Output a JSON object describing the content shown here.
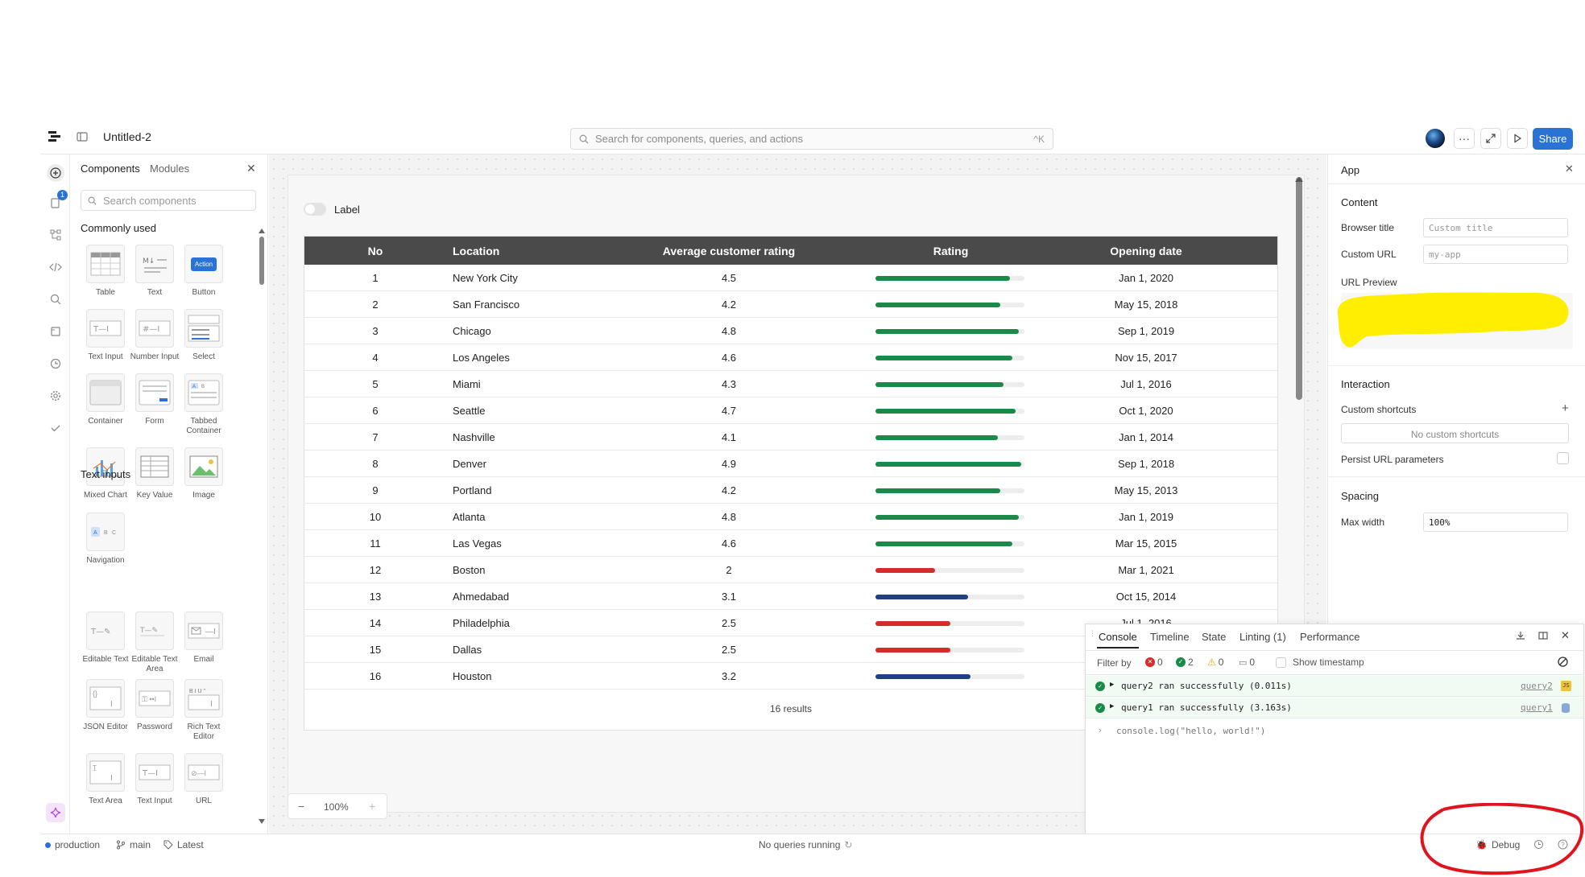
{
  "topbar": {
    "app_name": "Untitled-2",
    "search_placeholder": "Search for components, queries, and actions",
    "search_shortcut": "^K",
    "share_label": "Share"
  },
  "left_rail": {
    "notification_badge": "1"
  },
  "components_panel": {
    "tab_components": "Components",
    "tab_modules": "Modules",
    "search_placeholder": "Search components",
    "section_common": "Commonly used",
    "section_text_inputs": "Text inputs",
    "common": [
      {
        "label": "Table",
        "icon": "table-icon"
      },
      {
        "label": "Text",
        "icon": "markdown-icon"
      },
      {
        "label": "Button",
        "icon": "button-icon",
        "icon_text": "Action"
      },
      {
        "label": "Text Input",
        "icon": "text-input-icon"
      },
      {
        "label": "Number Input",
        "icon": "number-input-icon"
      },
      {
        "label": "Select",
        "icon": "select-icon"
      },
      {
        "label": "Container",
        "icon": "container-icon"
      },
      {
        "label": "Form",
        "icon": "form-icon"
      },
      {
        "label": "Tabbed Container",
        "icon": "tabbed-container-icon"
      },
      {
        "label": "Mixed Chart",
        "icon": "chart-icon"
      },
      {
        "label": "Key Value",
        "icon": "key-value-icon"
      },
      {
        "label": "Image",
        "icon": "image-icon"
      },
      {
        "label": "Navigation",
        "icon": "navigation-icon"
      }
    ],
    "text_inputs": [
      {
        "label": "Editable Text",
        "icon": "editable-text-icon"
      },
      {
        "label": "Editable Text Area",
        "icon": "editable-text-area-icon"
      },
      {
        "label": "Email",
        "icon": "email-icon"
      },
      {
        "label": "JSON Editor",
        "icon": "json-editor-icon"
      },
      {
        "label": "Password",
        "icon": "password-icon"
      },
      {
        "label": "Rich Text Editor",
        "icon": "rich-text-icon"
      },
      {
        "label": "Text Area",
        "icon": "text-area-icon"
      },
      {
        "label": "Text Input",
        "icon": "text-input-icon"
      },
      {
        "label": "URL",
        "icon": "url-icon"
      }
    ]
  },
  "canvas": {
    "toggle_label": "Label",
    "zoom": "100%",
    "table": {
      "headers": [
        "No",
        "Location",
        "Average customer rating",
        "Rating",
        "Opening date"
      ],
      "rows": [
        {
          "no": "1",
          "location": "New York City",
          "avg": "4.5",
          "rating": 0.9,
          "color": "#1a8a4a",
          "date": "Jan 1, 2020"
        },
        {
          "no": "2",
          "location": "San Francisco",
          "avg": "4.2",
          "rating": 0.84,
          "color": "#1a8a4a",
          "date": "May 15, 2018"
        },
        {
          "no": "3",
          "location": "Chicago",
          "avg": "4.8",
          "rating": 0.96,
          "color": "#1a8a4a",
          "date": "Sep 1, 2019"
        },
        {
          "no": "4",
          "location": "Los Angeles",
          "avg": "4.6",
          "rating": 0.92,
          "color": "#1a8a4a",
          "date": "Nov 15, 2017"
        },
        {
          "no": "5",
          "location": "Miami",
          "avg": "4.3",
          "rating": 0.86,
          "color": "#1a8a4a",
          "date": "Jul 1, 2016"
        },
        {
          "no": "6",
          "location": "Seattle",
          "avg": "4.7",
          "rating": 0.94,
          "color": "#1a8a4a",
          "date": "Oct 1, 2020"
        },
        {
          "no": "7",
          "location": "Nashville",
          "avg": "4.1",
          "rating": 0.82,
          "color": "#1a8a4a",
          "date": "Jan 1, 2014"
        },
        {
          "no": "8",
          "location": "Denver",
          "avg": "4.9",
          "rating": 0.98,
          "color": "#1a8a4a",
          "date": "Sep 1, 2018"
        },
        {
          "no": "9",
          "location": "Portland",
          "avg": "4.2",
          "rating": 0.84,
          "color": "#1a8a4a",
          "date": "May 15, 2013"
        },
        {
          "no": "10",
          "location": "Atlanta",
          "avg": "4.8",
          "rating": 0.96,
          "color": "#1a8a4a",
          "date": "Jan 1, 2019"
        },
        {
          "no": "11",
          "location": "Las Vegas",
          "avg": "4.6",
          "rating": 0.92,
          "color": "#1a8a4a",
          "date": "Mar 15, 2015"
        },
        {
          "no": "12",
          "location": "Boston",
          "avg": "2",
          "rating": 0.4,
          "color": "#d62b2b",
          "date": "Mar 1, 2021"
        },
        {
          "no": "13",
          "location": "Ahmedabad",
          "avg": "3.1",
          "rating": 0.62,
          "color": "#1f3f8a",
          "date": "Oct 15, 2014"
        },
        {
          "no": "14",
          "location": "Philadelphia",
          "avg": "2.5",
          "rating": 0.5,
          "color": "#d62b2b",
          "date": "Jul 1, 2016"
        },
        {
          "no": "15",
          "location": "Dallas",
          "avg": "2.5",
          "rating": 0.5,
          "color": "#d62b2b",
          "date": ""
        },
        {
          "no": "16",
          "location": "Houston",
          "avg": "3.2",
          "rating": 0.64,
          "color": "#1f3f8a",
          "date": ""
        }
      ],
      "results": "16 results"
    }
  },
  "right_panel": {
    "title": "App",
    "content_head": "Content",
    "browser_title_label": "Browser title",
    "browser_title_placeholder": "Custom title",
    "custom_url_label": "Custom URL",
    "custom_url_placeholder": "my-app",
    "url_preview_label": "URL Preview",
    "interaction_head": "Interaction",
    "custom_shortcuts_label": "Custom shortcuts",
    "no_shortcuts": "No custom shortcuts",
    "persist_url_label": "Persist URL parameters",
    "spacing_head": "Spacing",
    "max_width_label": "Max width",
    "max_width_value": "100%"
  },
  "console": {
    "tabs": [
      "Console",
      "Timeline",
      "State",
      "Linting (1)",
      "Performance"
    ],
    "filter_label": "Filter by",
    "count_error": "0",
    "count_success": "2",
    "count_warning": "0",
    "count_log": "0",
    "show_timestamp": "Show timestamp",
    "entries": [
      {
        "text": "query2 ran successfully (0.011s)",
        "link": "query2",
        "badge": "JS"
      },
      {
        "text": "query1 ran successfully (3.163s)",
        "link": "query1",
        "badge": "db"
      }
    ],
    "command": "console.log(\"hello, world!\")"
  },
  "status_bar": {
    "environment": "production",
    "branch": "main",
    "version": "Latest",
    "queries_status": "No queries running",
    "debug_label": "Debug"
  },
  "colors": {
    "accent": "#2a73d6",
    "success": "#1a8a4a",
    "danger": "#d62b2b",
    "info": "#1f3f8a",
    "highlight": "#ffee00",
    "annotation": "#e0141e"
  }
}
